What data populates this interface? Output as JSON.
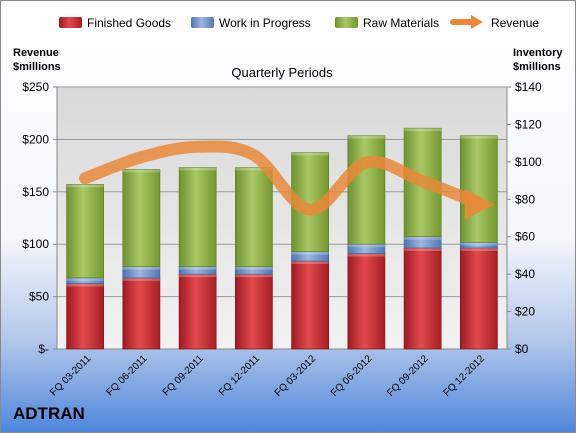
{
  "company": "ADTRAN",
  "chart_data": {
    "type": "bar",
    "subtype": "stacked-bar-with-line",
    "title": "Quarterly Periods",
    "categories": [
      "FQ 03-2011",
      "FQ 06-2011",
      "FQ 09-2011",
      "FQ 12-2011",
      "FQ 03-2012",
      "FQ 06-2012",
      "FQ 09-2012",
      "FQ 12-2012"
    ],
    "left_axis": {
      "label_line1": "Revenue",
      "label_line2": "$millions",
      "range": [
        0,
        250
      ],
      "ticks": [
        0,
        50,
        100,
        150,
        200,
        250
      ],
      "tick_labels": [
        "$-",
        "$50",
        "$100",
        "$150",
        "$200",
        "$250"
      ]
    },
    "right_axis": {
      "label_line1": "Inventory",
      "label_line2": "$millions",
      "range": [
        0,
        140
      ],
      "ticks": [
        0,
        20,
        40,
        60,
        80,
        100,
        120,
        140
      ],
      "tick_labels": [
        "$0",
        "$20",
        "$40",
        "$60",
        "$80",
        "$100",
        "$120",
        "$140"
      ]
    },
    "series": [
      {
        "name": "Finished Goods",
        "axis": "right",
        "color": "#c0282f",
        "values": [
          35,
          38,
          40,
          40,
          47,
          51,
          54,
          54
        ]
      },
      {
        "name": "Work in Progress",
        "axis": "right",
        "color": "#6d8fc7",
        "values": [
          3,
          6,
          4,
          4,
          5,
          5,
          6,
          3
        ]
      },
      {
        "name": "Raw Materials",
        "axis": "right",
        "color": "#8caf3e",
        "values": [
          50,
          52,
          53,
          53,
          53,
          58,
          58,
          57
        ]
      },
      {
        "name": "Revenue",
        "axis": "left",
        "type": "line",
        "color": "#e8883a",
        "values": [
          163,
          183,
          193,
          185,
          133,
          178,
          160,
          139
        ]
      }
    ],
    "legend_position": "top",
    "grid": true
  }
}
